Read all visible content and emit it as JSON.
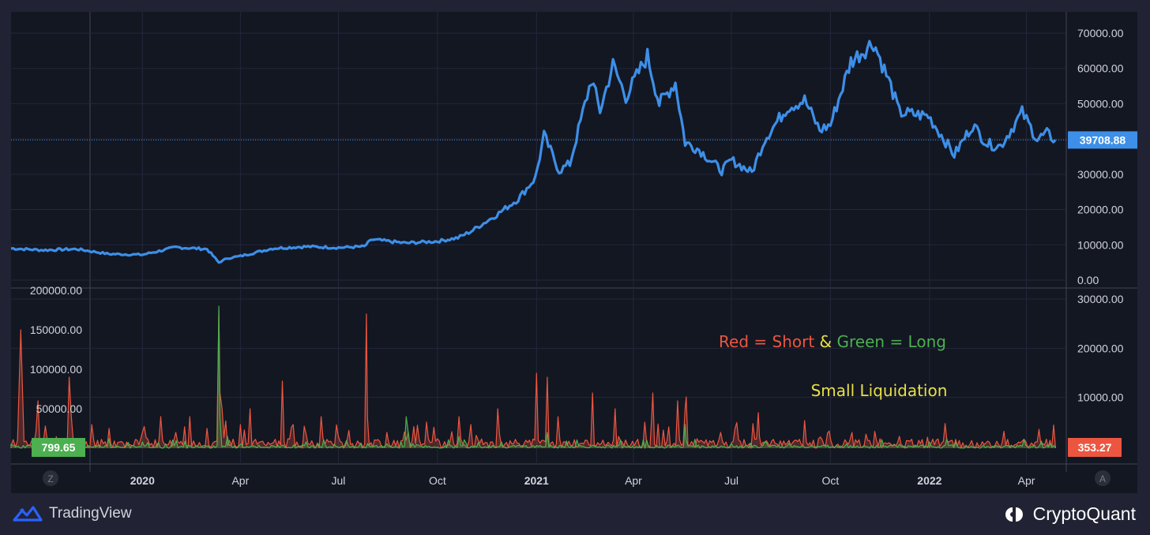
{
  "chart_data": [
    {
      "type": "line",
      "series": [
        {
          "color": "#3d8fe8",
          "x": [
            "2019-09-01",
            "2019-10-01",
            "2019-11-01",
            "2019-12-01",
            "2020-01-01",
            "2020-02-01",
            "2020-03-01",
            "2020-03-12",
            "2020-03-20",
            "2020-04-01",
            "2020-05-01",
            "2020-06-01",
            "2020-07-01",
            "2020-07-25",
            "2020-08-01",
            "2020-09-01",
            "2020-10-01",
            "2020-10-20",
            "2020-11-01",
            "2020-11-25",
            "2020-12-15",
            "2020-12-31",
            "2021-01-08",
            "2021-01-22",
            "2021-02-01",
            "2021-02-21",
            "2021-03-01",
            "2021-03-13",
            "2021-03-25",
            "2021-04-14",
            "2021-04-25",
            "2021-05-10",
            "2021-05-19",
            "2021-06-01",
            "2021-06-22",
            "2021-07-01",
            "2021-07-20",
            "2021-08-01",
            "2021-08-22",
            "2021-09-07",
            "2021-09-21",
            "2021-10-01",
            "2021-10-20",
            "2021-11-10",
            "2021-11-26",
            "2021-12-04",
            "2021-12-31",
            "2022-01-10",
            "2022-01-24",
            "2022-02-10",
            "2022-02-24",
            "2022-03-08",
            "2022-03-28",
            "2022-04-11",
            "2022-04-20",
            "2022-04-28"
          ],
          "y": [
            9000,
            8500,
            8800,
            7400,
            7200,
            9300,
            8800,
            5000,
            6200,
            6800,
            9000,
            9500,
            9200,
            9500,
            11500,
            10500,
            11000,
            12000,
            13800,
            18500,
            23000,
            29000,
            41000,
            31000,
            33000,
            57000,
            48000,
            61000,
            52000,
            63500,
            50000,
            56000,
            39000,
            37000,
            31000,
            34000,
            30500,
            40000,
            49000,
            51000,
            42500,
            44000,
            62000,
            67500,
            55000,
            47500,
            46500,
            42000,
            35500,
            44000,
            38500,
            38000,
            47500,
            40000,
            41500,
            39708.88
          ]
        }
      ],
      "ylim": [
        0,
        72000
      ],
      "ticks": [
        "70000.00",
        "60000.00",
        "50000.00",
        "40000.00",
        "30000.00",
        "20000.00",
        "10000.00",
        "0.00"
      ],
      "last_value_label": "39708.88",
      "legend": "none"
    },
    {
      "type": "area",
      "series": [
        {
          "color": "#ec5640",
          "x": [
            "2019-09-01",
            "2019-09-07",
            "2019-09-10",
            "2019-09-13",
            "2019-09-24",
            "2019-09-26",
            "2019-10-25",
            "2019-10-27",
            "2019-11-15",
            "2019-12-01",
            "2020-01-01",
            "2020-01-18",
            "2020-02-01",
            "2020-02-14",
            "2020-03-01",
            "2020-03-12",
            "2020-03-13",
            "2020-03-15",
            "2020-04-01",
            "2020-04-10",
            "2020-05-10",
            "2020-05-20",
            "2020-06-01",
            "2020-06-15",
            "2020-07-01",
            "2020-07-27",
            "2020-07-28",
            "2020-08-15",
            "2020-09-02",
            "2020-09-04",
            "2020-10-01",
            "2020-10-21",
            "2020-11-01",
            "2020-11-26",
            "2021-01-01",
            "2021-01-11",
            "2021-01-21",
            "2021-02-22",
            "2021-03-15",
            "2021-04-18",
            "2021-04-19",
            "2021-05-12",
            "2021-05-19",
            "2021-05-20",
            "2021-06-21",
            "2021-07-26",
            "2021-07-27",
            "2021-09-07",
            "2021-09-20",
            "2021-10-21",
            "2021-11-16",
            "2021-12-04",
            "2022-01-22",
            "2022-02-24",
            "2022-03-28",
            "2022-04-11",
            "2022-04-28"
          ],
          "y": [
            3000,
            10000,
            150000,
            8000,
            20000,
            60000,
            90000,
            40000,
            30000,
            25000,
            20000,
            40000,
            20000,
            40000,
            25000,
            175000,
            70000,
            50000,
            30000,
            50000,
            85000,
            30000,
            18000,
            40000,
            15000,
            170000,
            40000,
            20000,
            10000,
            20000,
            12000,
            40000,
            30000,
            50000,
            95000,
            90000,
            40000,
            70000,
            50000,
            40000,
            70000,
            60000,
            50000,
            65000,
            20000,
            45000,
            15000,
            35000,
            12000,
            20000,
            12000,
            15000,
            10000,
            9000,
            9000,
            8000,
            353.27
          ]
        },
        {
          "color": "#4caf50",
          "x": [
            "2019-09-01",
            "2019-12-01",
            "2020-01-01",
            "2020-03-12",
            "2020-03-13",
            "2020-03-20",
            "2020-06-01",
            "2020-09-02",
            "2020-09-05",
            "2020-10-21",
            "2021-01-11",
            "2021-05-19",
            "2021-05-20",
            "2021-07-01",
            "2021-12-04",
            "2022-01-22",
            "2022-04-28"
          ],
          "y": [
            5000,
            12000,
            8000,
            180000,
            40000,
            15000,
            8000,
            40000,
            8000,
            15000,
            20000,
            30000,
            10000,
            6000,
            5000,
            4000,
            799.65
          ]
        }
      ],
      "ylim_left": [
        0,
        200000
      ],
      "ticks_left": [
        "200000.00",
        "150000.00",
        "100000.00",
        "50000.00"
      ],
      "ylim_right": [
        0,
        30000
      ],
      "ticks_right": [
        "30000.00",
        "20000.00",
        "10000.00"
      ],
      "left_value_label": "799.65",
      "right_value_label": "353.27",
      "annotation": {
        "red": "Red = Short",
        "amp": " & ",
        "green": "Green = Long",
        "small": "Small Liquidation"
      }
    }
  ],
  "x_axis": {
    "ticks": [
      {
        "date": "2020-01-01",
        "label": "2020",
        "bold": true
      },
      {
        "date": "2020-04-01",
        "label": "Apr",
        "bold": false
      },
      {
        "date": "2020-07-01",
        "label": "Jul",
        "bold": false
      },
      {
        "date": "2020-10-01",
        "label": "Oct",
        "bold": false
      },
      {
        "date": "2021-01-01",
        "label": "2021",
        "bold": true
      },
      {
        "date": "2021-04-01",
        "label": "Apr",
        "bold": false
      },
      {
        "date": "2021-07-01",
        "label": "Jul",
        "bold": false
      },
      {
        "date": "2021-10-01",
        "label": "Oct",
        "bold": false
      },
      {
        "date": "2022-01-01",
        "label": "2022",
        "bold": true
      },
      {
        "date": "2022-04-01",
        "label": "Apr",
        "bold": false
      }
    ],
    "range": [
      "2019-09-01",
      "2022-05-08"
    ]
  },
  "footer": {
    "tv_text": "TradingView",
    "cq_text": "CryptoQuant",
    "z_button": "Z",
    "a_button": "A"
  },
  "colors": {
    "background": "#131722",
    "frame": "#212334",
    "grid": "#2a2e39",
    "price_line": "#3d8fe8",
    "short": "#ec5640",
    "long": "#4caf50",
    "annotation_yellow": "#e8e04a"
  }
}
